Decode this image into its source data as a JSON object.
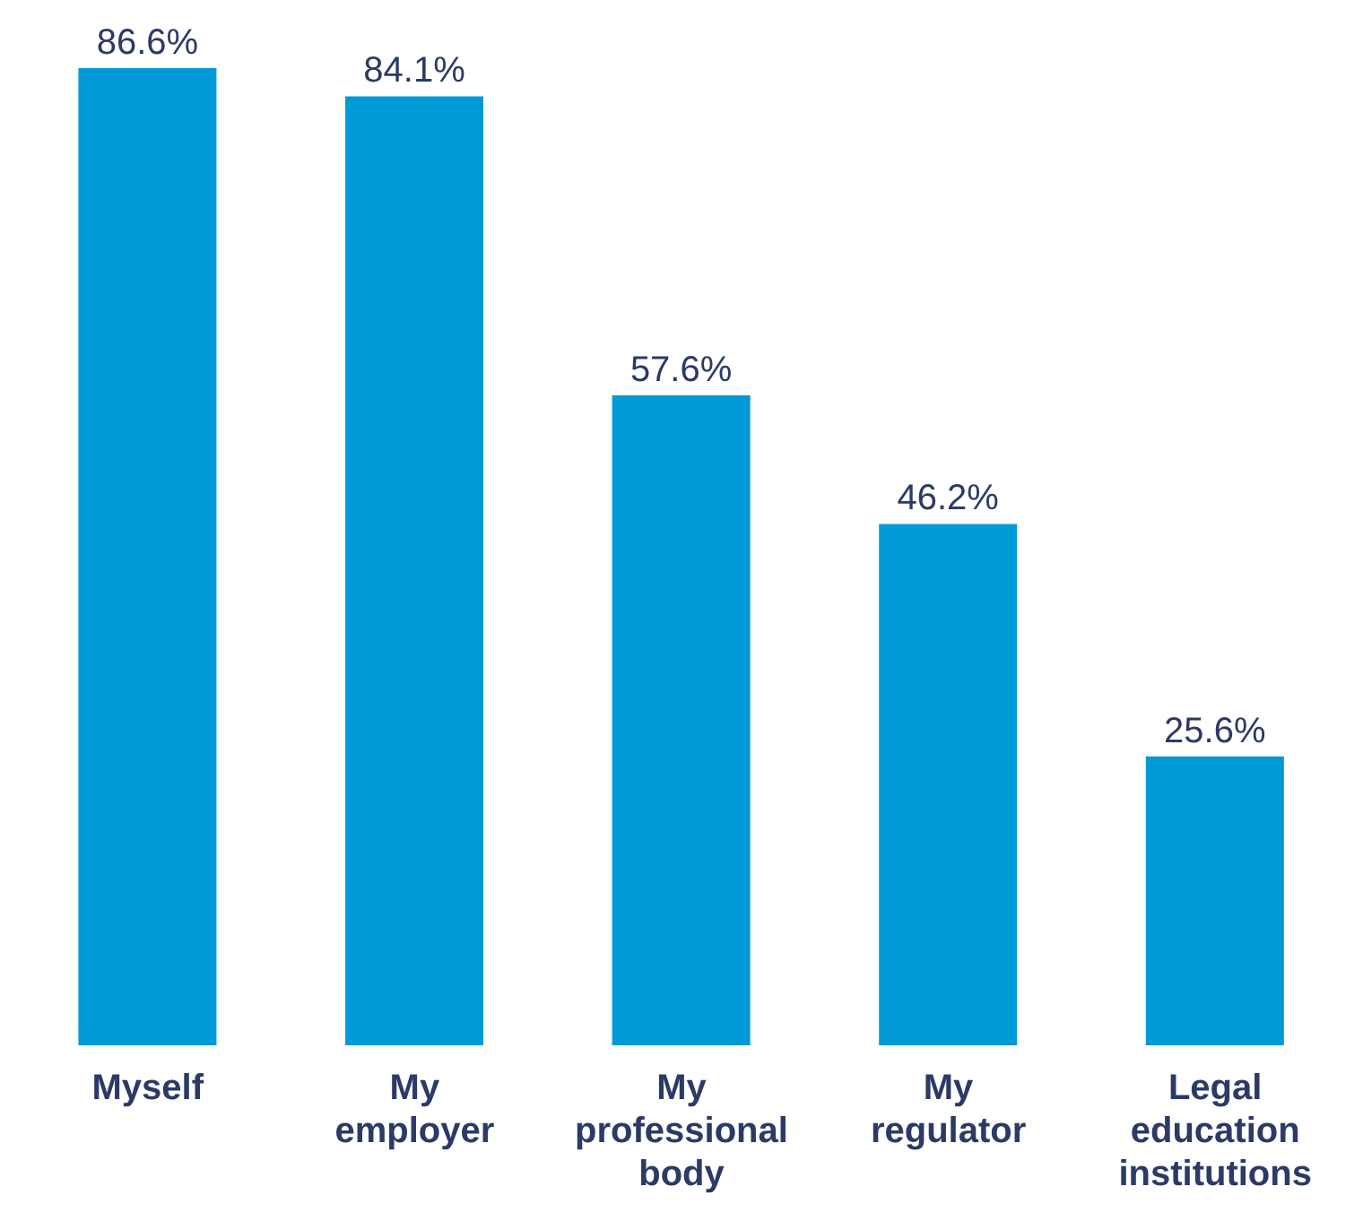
{
  "chart_data": {
    "type": "bar",
    "categories": [
      "Myself",
      "My employer",
      "My professional body",
      "My regulator",
      "Legal education institutions"
    ],
    "values": [
      86.6,
      84.1,
      57.6,
      46.2,
      25.6
    ],
    "value_labels": [
      "86.6%",
      "84.1%",
      "57.6%",
      "46.2%",
      "25.6%"
    ],
    "color": "#009ad6",
    "grid": false,
    "legend": false
  }
}
